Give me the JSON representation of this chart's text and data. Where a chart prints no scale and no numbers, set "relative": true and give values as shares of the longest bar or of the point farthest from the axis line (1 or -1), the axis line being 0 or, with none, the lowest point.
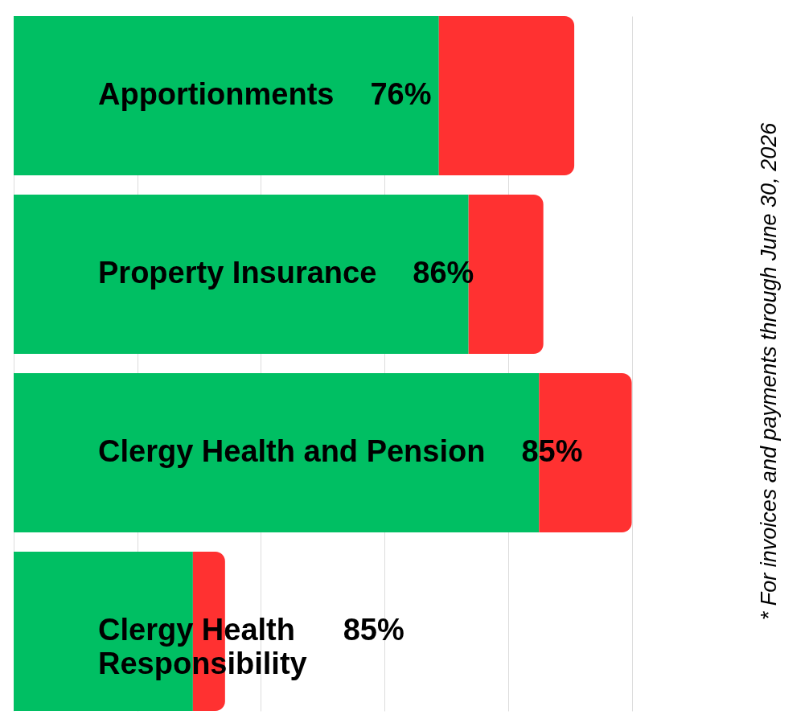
{
  "chart_data": {
    "type": "bar",
    "orientation": "horizontal",
    "stacked": true,
    "relative": true,
    "grid": "x",
    "categories": [
      "Apportionments",
      "Property Insurance",
      "Clergy Health and Pension",
      "Clergy Health Responsibility"
    ],
    "series": [
      {
        "color": "#00bf63",
        "values": [
          0.688,
          0.736,
          0.85,
          0.29
        ]
      },
      {
        "color": "#ff3131",
        "values": [
          0.219,
          0.121,
          0.15,
          0.052
        ]
      }
    ],
    "annotations": [
      "76%",
      "86%",
      "85%",
      "85%",
      "* For invoices and payments through June 30, 2026"
    ]
  }
}
